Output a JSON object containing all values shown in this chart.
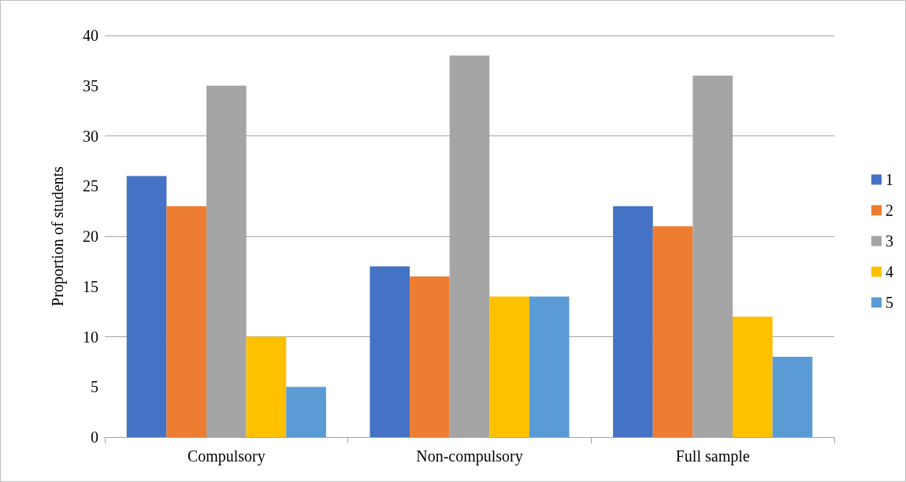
{
  "chart_data": {
    "type": "bar",
    "ylabel": "Proportion of students",
    "categories": [
      "Compulsory",
      "Non-compulsory",
      "Full sample"
    ],
    "series": [
      {
        "name": "1",
        "color": "#4472c4",
        "values": [
          26,
          17,
          23
        ]
      },
      {
        "name": "2",
        "color": "#ed7d31",
        "values": [
          23,
          16,
          21
        ]
      },
      {
        "name": "3",
        "color": "#a5a5a5",
        "values": [
          35,
          38,
          36
        ]
      },
      {
        "name": "4",
        "color": "#ffc000",
        "values": [
          10,
          14,
          12
        ]
      },
      {
        "name": "5",
        "color": "#5b9bd5",
        "values": [
          5,
          14,
          8
        ]
      }
    ],
    "ylim": [
      0,
      40
    ],
    "yticks": [
      0,
      5,
      10,
      15,
      20,
      25,
      30,
      35,
      40
    ],
    "grid": "y",
    "legend": "right"
  }
}
